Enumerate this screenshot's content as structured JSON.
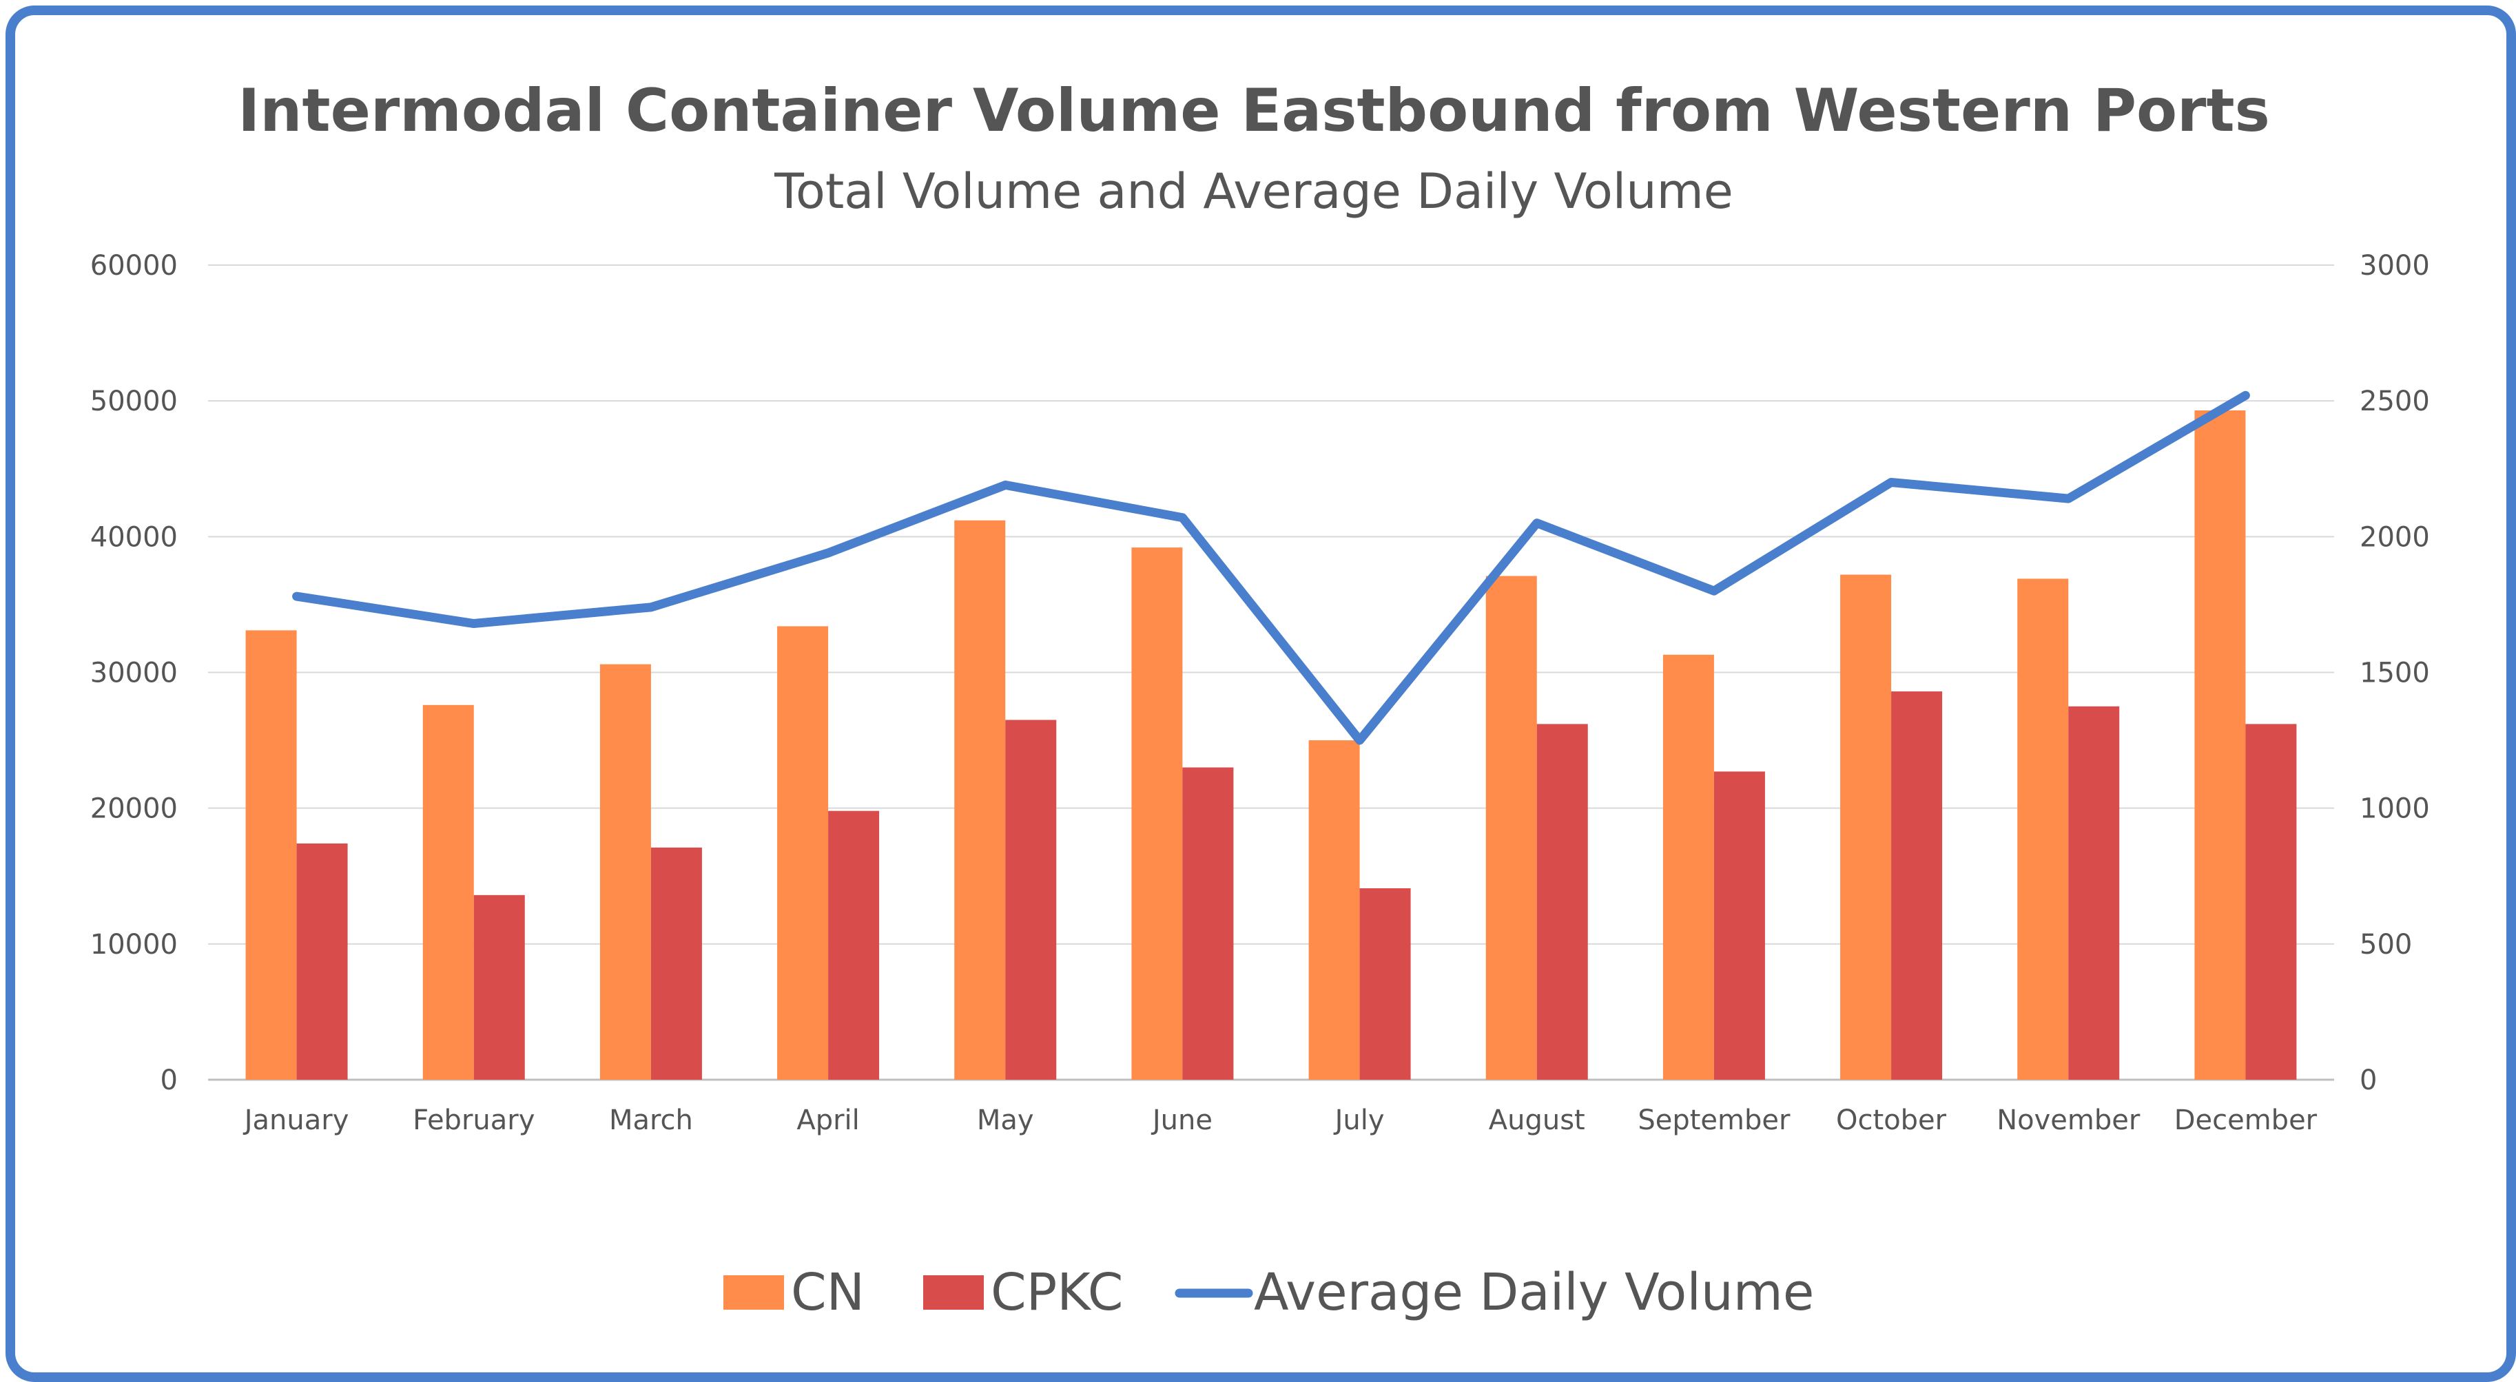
{
  "chart_data": {
    "type": "bar",
    "title": "Intermodal Container Volume Eastbound from Western Ports",
    "subtitle": "Total Volume and Average Daily Volume",
    "categories": [
      "January",
      "February",
      "March",
      "April",
      "May",
      "June",
      "July",
      "August",
      "September",
      "October",
      "November",
      "December"
    ],
    "series": [
      {
        "name": "CN",
        "type": "bar",
        "axis": "left",
        "color": "#ff8c4a",
        "values": [
          33100,
          27600,
          30600,
          33400,
          41200,
          39200,
          25000,
          37100,
          31300,
          37200,
          36900,
          49300
        ]
      },
      {
        "name": "CPKC",
        "type": "bar",
        "axis": "left",
        "color": "#d94c4c",
        "values": [
          17400,
          13600,
          17100,
          19800,
          26500,
          23000,
          14100,
          26200,
          22700,
          28600,
          27500,
          26200
        ]
      },
      {
        "name": "Average Daily Volume",
        "type": "line",
        "axis": "right",
        "color": "#4a7fcd",
        "values": [
          1780,
          1680,
          1740,
          1940,
          2190,
          2070,
          1250,
          2050,
          1800,
          2200,
          2140,
          2520
        ]
      }
    ],
    "y_left": {
      "min": 0,
      "max": 60000,
      "ticks": [
        "0",
        "10000",
        "20000",
        "30000",
        "40000",
        "50000",
        "60000"
      ]
    },
    "y_right": {
      "min": 0,
      "max": 3000,
      "ticks": [
        "0",
        "500",
        "1000",
        "1500",
        "2000",
        "2500",
        "3000"
      ]
    },
    "grid": true,
    "legend_position": "bottom"
  }
}
